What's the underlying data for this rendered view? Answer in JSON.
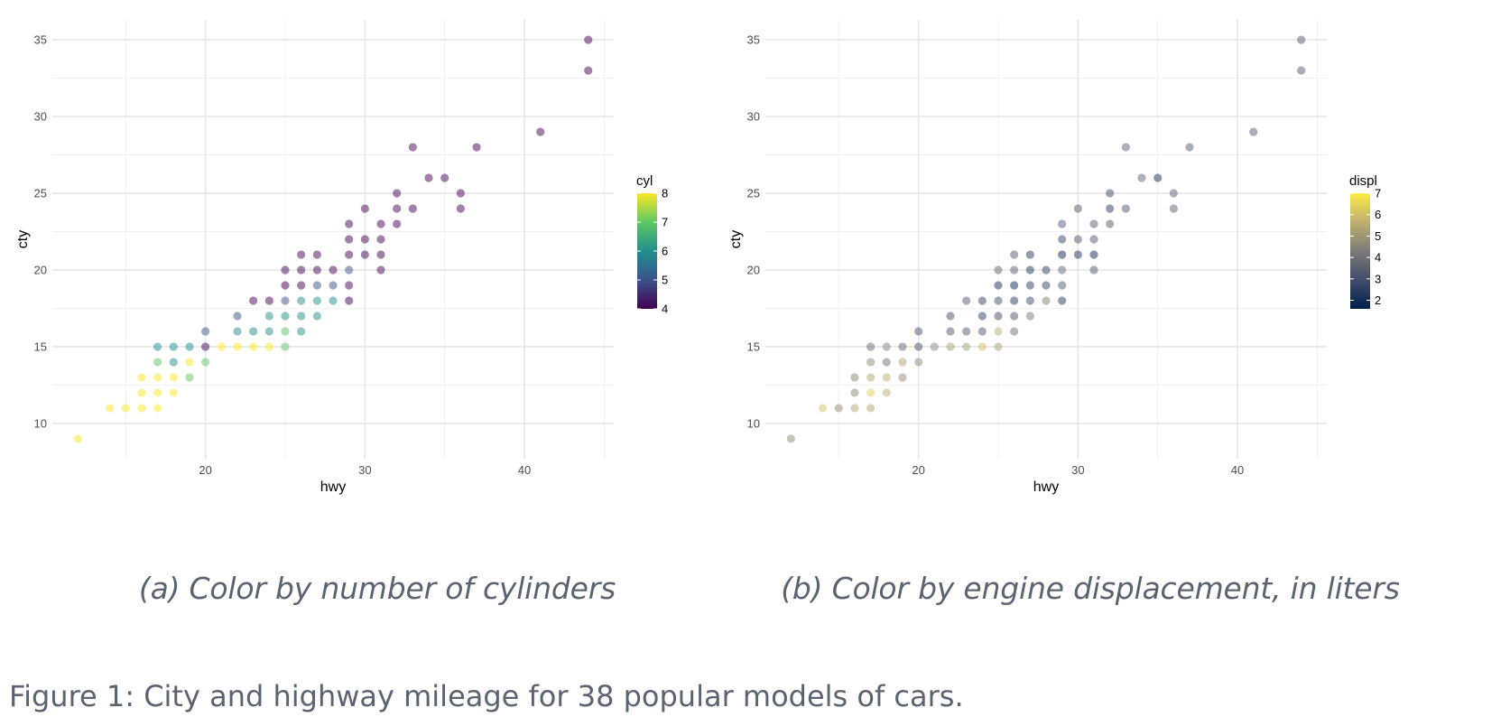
{
  "figure_caption": "Figure 1: City and highway mileage for 38 popular models of cars.",
  "colors": {
    "viridis": [
      "#440154",
      "#3b528b",
      "#21908c",
      "#5dc863",
      "#fde725"
    ],
    "cividis": [
      "#00204d",
      "#414d6b",
      "#7c7b78",
      "#bcaf6f",
      "#ffea46"
    ]
  },
  "chart_data": [
    {
      "type": "scatter",
      "caption": "(a) Color by number of cylinders",
      "xlabel": "hwy",
      "ylabel": "cty",
      "x_ticks": [
        20,
        30,
        40
      ],
      "y_ticks": [
        10,
        15,
        20,
        25,
        30,
        35
      ],
      "xlim": [
        10.4,
        45.6
      ],
      "ylim": [
        7.7,
        36.3
      ],
      "grid": true,
      "legend": {
        "title": "cyl",
        "position": "right",
        "min": 4,
        "max": 8,
        "ticks": [
          4,
          5,
          6,
          7,
          8
        ],
        "palette": "viridis"
      },
      "points": [
        {
          "x": 12,
          "y": 9,
          "c": 8
        },
        {
          "x": 14,
          "y": 11,
          "c": 8
        },
        {
          "x": 15,
          "y": 11,
          "c": 8
        },
        {
          "x": 16,
          "y": 11,
          "c": 8
        },
        {
          "x": 17,
          "y": 11,
          "c": 8
        },
        {
          "x": 16,
          "y": 12,
          "c": 8
        },
        {
          "x": 17,
          "y": 12,
          "c": 8
        },
        {
          "x": 18,
          "y": 12,
          "c": 8
        },
        {
          "x": 16,
          "y": 13,
          "c": 8
        },
        {
          "x": 17,
          "y": 13,
          "c": 8
        },
        {
          "x": 18,
          "y": 13,
          "c": 8
        },
        {
          "x": 19,
          "y": 13,
          "c": 7
        },
        {
          "x": 17,
          "y": 14,
          "c": 7
        },
        {
          "x": 18,
          "y": 14,
          "c": 6
        },
        {
          "x": 19,
          "y": 14,
          "c": 8
        },
        {
          "x": 20,
          "y": 14,
          "c": 7
        },
        {
          "x": 17,
          "y": 15,
          "c": 6
        },
        {
          "x": 18,
          "y": 15,
          "c": 6
        },
        {
          "x": 19,
          "y": 15,
          "c": 6
        },
        {
          "x": 20,
          "y": 15,
          "c": 4
        },
        {
          "x": 21,
          "y": 15,
          "c": 8
        },
        {
          "x": 22,
          "y": 15,
          "c": 8
        },
        {
          "x": 23,
          "y": 15,
          "c": 8
        },
        {
          "x": 24,
          "y": 15,
          "c": 8
        },
        {
          "x": 25,
          "y": 15,
          "c": 7
        },
        {
          "x": 20,
          "y": 16,
          "c": 5
        },
        {
          "x": 22,
          "y": 16,
          "c": 6
        },
        {
          "x": 23,
          "y": 16,
          "c": 6
        },
        {
          "x": 24,
          "y": 16,
          "c": 6
        },
        {
          "x": 25,
          "y": 16,
          "c": 7
        },
        {
          "x": 26,
          "y": 16,
          "c": 6
        },
        {
          "x": 22,
          "y": 17,
          "c": 5
        },
        {
          "x": 24,
          "y": 17,
          "c": 6
        },
        {
          "x": 25,
          "y": 17,
          "c": 6
        },
        {
          "x": 26,
          "y": 17,
          "c": 6
        },
        {
          "x": 27,
          "y": 17,
          "c": 6
        },
        {
          "x": 23,
          "y": 18,
          "c": 4
        },
        {
          "x": 24,
          "y": 18,
          "c": 4
        },
        {
          "x": 25,
          "y": 18,
          "c": 5
        },
        {
          "x": 26,
          "y": 18,
          "c": 6
        },
        {
          "x": 27,
          "y": 18,
          "c": 6
        },
        {
          "x": 28,
          "y": 18,
          "c": 6
        },
        {
          "x": 29,
          "y": 18,
          "c": 4
        },
        {
          "x": 25,
          "y": 19,
          "c": 4
        },
        {
          "x": 26,
          "y": 19,
          "c": 4
        },
        {
          "x": 27,
          "y": 19,
          "c": 5
        },
        {
          "x": 28,
          "y": 19,
          "c": 5
        },
        {
          "x": 29,
          "y": 19,
          "c": 4
        },
        {
          "x": 25,
          "y": 20,
          "c": 4
        },
        {
          "x": 26,
          "y": 20,
          "c": 4
        },
        {
          "x": 27,
          "y": 20,
          "c": 4
        },
        {
          "x": 28,
          "y": 20,
          "c": 4
        },
        {
          "x": 29,
          "y": 20,
          "c": 5
        },
        {
          "x": 31,
          "y": 20,
          "c": 4
        },
        {
          "x": 26,
          "y": 21,
          "c": 4
        },
        {
          "x": 27,
          "y": 21,
          "c": 4
        },
        {
          "x": 29,
          "y": 21,
          "c": 4
        },
        {
          "x": 30,
          "y": 21,
          "c": 4
        },
        {
          "x": 31,
          "y": 21,
          "c": 4
        },
        {
          "x": 29,
          "y": 22,
          "c": 4
        },
        {
          "x": 30,
          "y": 22,
          "c": 4
        },
        {
          "x": 31,
          "y": 22,
          "c": 4
        },
        {
          "x": 29,
          "y": 23,
          "c": 4
        },
        {
          "x": 31,
          "y": 23,
          "c": 4
        },
        {
          "x": 32,
          "y": 23,
          "c": 4
        },
        {
          "x": 30,
          "y": 24,
          "c": 4
        },
        {
          "x": 32,
          "y": 24,
          "c": 4
        },
        {
          "x": 33,
          "y": 24,
          "c": 4
        },
        {
          "x": 36,
          "y": 24,
          "c": 4
        },
        {
          "x": 32,
          "y": 25,
          "c": 4
        },
        {
          "x": 36,
          "y": 25,
          "c": 4
        },
        {
          "x": 34,
          "y": 26,
          "c": 4
        },
        {
          "x": 35,
          "y": 26,
          "c": 4
        },
        {
          "x": 33,
          "y": 28,
          "c": 4
        },
        {
          "x": 37,
          "y": 28,
          "c": 4
        },
        {
          "x": 41,
          "y": 29,
          "c": 4
        },
        {
          "x": 44,
          "y": 33,
          "c": 4
        },
        {
          "x": 44,
          "y": 35,
          "c": 4
        }
      ]
    },
    {
      "type": "scatter",
      "caption": "(b) Color by engine displacement, in liters",
      "xlabel": "hwy",
      "ylabel": "cty",
      "x_ticks": [
        20,
        30,
        40
      ],
      "y_ticks": [
        10,
        15,
        20,
        25,
        30,
        35
      ],
      "xlim": [
        10.4,
        45.6
      ],
      "ylim": [
        7.7,
        36.3
      ],
      "grid": true,
      "legend": {
        "title": "displ",
        "position": "right",
        "min": 1.6,
        "max": 7,
        "ticks": [
          2,
          3,
          4,
          5,
          6,
          7
        ],
        "palette": "cividis"
      },
      "points": [
        {
          "x": 12,
          "y": 9,
          "c": 4.7
        },
        {
          "x": 14,
          "y": 11,
          "c": 6.1
        },
        {
          "x": 15,
          "y": 11,
          "c": 4.7
        },
        {
          "x": 16,
          "y": 11,
          "c": 5.4
        },
        {
          "x": 17,
          "y": 11,
          "c": 5.4
        },
        {
          "x": 16,
          "y": 12,
          "c": 4.6
        },
        {
          "x": 17,
          "y": 12,
          "c": 6.5
        },
        {
          "x": 18,
          "y": 12,
          "c": 5.6
        },
        {
          "x": 16,
          "y": 13,
          "c": 4.6
        },
        {
          "x": 17,
          "y": 13,
          "c": 5.4
        },
        {
          "x": 18,
          "y": 13,
          "c": 5.7
        },
        {
          "x": 19,
          "y": 13,
          "c": 4.7
        },
        {
          "x": 17,
          "y": 14,
          "c": 4.7
        },
        {
          "x": 18,
          "y": 14,
          "c": 4.0
        },
        {
          "x": 19,
          "y": 14,
          "c": 5.3
        },
        {
          "x": 20,
          "y": 14,
          "c": 4.7
        },
        {
          "x": 17,
          "y": 15,
          "c": 3.8
        },
        {
          "x": 18,
          "y": 15,
          "c": 4.4
        },
        {
          "x": 19,
          "y": 15,
          "c": 3.7
        },
        {
          "x": 20,
          "y": 15,
          "c": 3.0
        },
        {
          "x": 21,
          "y": 15,
          "c": 4.6
        },
        {
          "x": 22,
          "y": 15,
          "c": 5.3
        },
        {
          "x": 23,
          "y": 15,
          "c": 5.3
        },
        {
          "x": 24,
          "y": 15,
          "c": 6.0
        },
        {
          "x": 25,
          "y": 15,
          "c": 5.3
        },
        {
          "x": 20,
          "y": 16,
          "c": 3.1
        },
        {
          "x": 22,
          "y": 16,
          "c": 3.4
        },
        {
          "x": 23,
          "y": 16,
          "c": 3.3
        },
        {
          "x": 24,
          "y": 16,
          "c": 3.3
        },
        {
          "x": 25,
          "y": 16,
          "c": 5.7
        },
        {
          "x": 26,
          "y": 16,
          "c": 4.0
        },
        {
          "x": 22,
          "y": 17,
          "c": 3.0
        },
        {
          "x": 24,
          "y": 17,
          "c": 2.5
        },
        {
          "x": 25,
          "y": 17,
          "c": 3.1
        },
        {
          "x": 26,
          "y": 17,
          "c": 3.1
        },
        {
          "x": 27,
          "y": 17,
          "c": 4.2
        },
        {
          "x": 23,
          "y": 18,
          "c": 3.5
        },
        {
          "x": 24,
          "y": 18,
          "c": 2.7
        },
        {
          "x": 25,
          "y": 18,
          "c": 3.1
        },
        {
          "x": 26,
          "y": 18,
          "c": 2.5
        },
        {
          "x": 27,
          "y": 18,
          "c": 2.8
        },
        {
          "x": 28,
          "y": 18,
          "c": 4.4
        },
        {
          "x": 29,
          "y": 18,
          "c": 2.4
        },
        {
          "x": 25,
          "y": 19,
          "c": 2.2
        },
        {
          "x": 26,
          "y": 19,
          "c": 1.9
        },
        {
          "x": 27,
          "y": 19,
          "c": 2.6
        },
        {
          "x": 28,
          "y": 19,
          "c": 2.6
        },
        {
          "x": 29,
          "y": 19,
          "c": 3.4
        },
        {
          "x": 25,
          "y": 20,
          "c": 3.7
        },
        {
          "x": 26,
          "y": 20,
          "c": 3.5
        },
        {
          "x": 27,
          "y": 20,
          "c": 2.3
        },
        {
          "x": 28,
          "y": 20,
          "c": 2.4
        },
        {
          "x": 29,
          "y": 20,
          "c": 3.7
        },
        {
          "x": 31,
          "y": 20,
          "c": 3.2
        },
        {
          "x": 26,
          "y": 21,
          "c": 3.3
        },
        {
          "x": 27,
          "y": 21,
          "c": 2.4
        },
        {
          "x": 29,
          "y": 21,
          "c": 1.8
        },
        {
          "x": 30,
          "y": 21,
          "c": 2.2
        },
        {
          "x": 31,
          "y": 21,
          "c": 2.0
        },
        {
          "x": 29,
          "y": 22,
          "c": 2.7
        },
        {
          "x": 30,
          "y": 22,
          "c": 3.3
        },
        {
          "x": 31,
          "y": 22,
          "c": 3.3
        },
        {
          "x": 29,
          "y": 23,
          "c": 3.3
        },
        {
          "x": 31,
          "y": 23,
          "c": 3.4
        },
        {
          "x": 32,
          "y": 23,
          "c": 3.4
        },
        {
          "x": 30,
          "y": 24,
          "c": 3.4
        },
        {
          "x": 32,
          "y": 24,
          "c": 2.4
        },
        {
          "x": 33,
          "y": 24,
          "c": 3.3
        },
        {
          "x": 36,
          "y": 24,
          "c": 3.6
        },
        {
          "x": 32,
          "y": 25,
          "c": 2.8
        },
        {
          "x": 36,
          "y": 25,
          "c": 3.5
        },
        {
          "x": 34,
          "y": 26,
          "c": 3.6
        },
        {
          "x": 35,
          "y": 26,
          "c": 2.1
        },
        {
          "x": 33,
          "y": 28,
          "c": 3.6
        },
        {
          "x": 37,
          "y": 28,
          "c": 3.5
        },
        {
          "x": 41,
          "y": 29,
          "c": 3.3
        },
        {
          "x": 44,
          "y": 33,
          "c": 3.4
        },
        {
          "x": 44,
          "y": 35,
          "c": 3.4
        }
      ]
    }
  ]
}
